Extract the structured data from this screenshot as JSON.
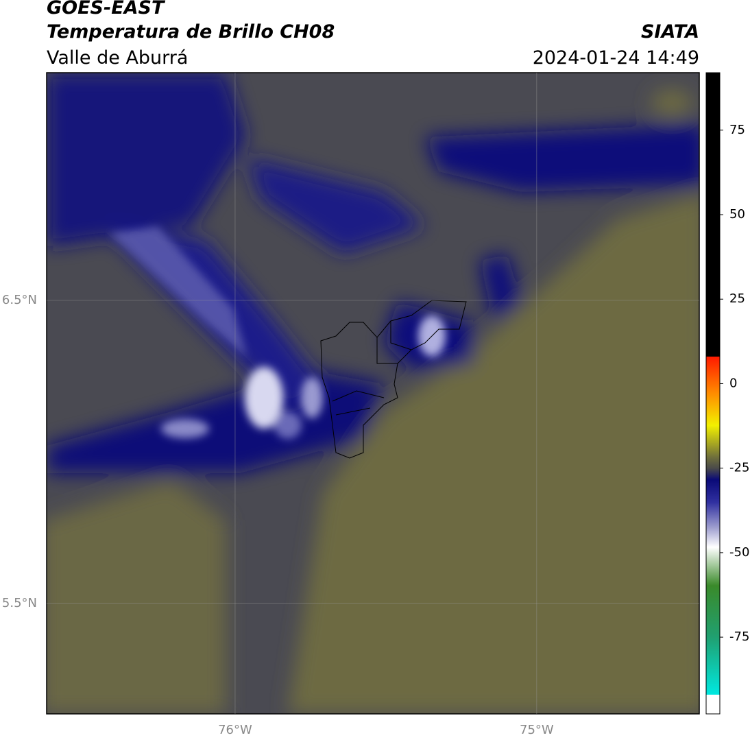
{
  "header": {
    "title": "GOES-EAST",
    "subtitle": "Temperatura de Brillo CH08",
    "region": "Valle de Aburrá",
    "agency": "SIATA",
    "timestamp": "2024-01-24 14:49"
  },
  "map": {
    "lonlim": [
      -76.625,
      -74.461
    ],
    "latlim": [
      5.136,
      7.251
    ],
    "xticks": [
      {
        "value": -76,
        "label": "76°W"
      },
      {
        "value": -75,
        "label": "75°W"
      }
    ],
    "yticks": [
      {
        "value": 6.5,
        "label": "6.5°N"
      },
      {
        "value": 5.5,
        "label": "5.5°N"
      }
    ]
  },
  "colorbar": {
    "lim": [
      -97.7,
      92
    ],
    "ticks": [
      75,
      50,
      25,
      0,
      -25,
      -50,
      -75
    ]
  }
}
